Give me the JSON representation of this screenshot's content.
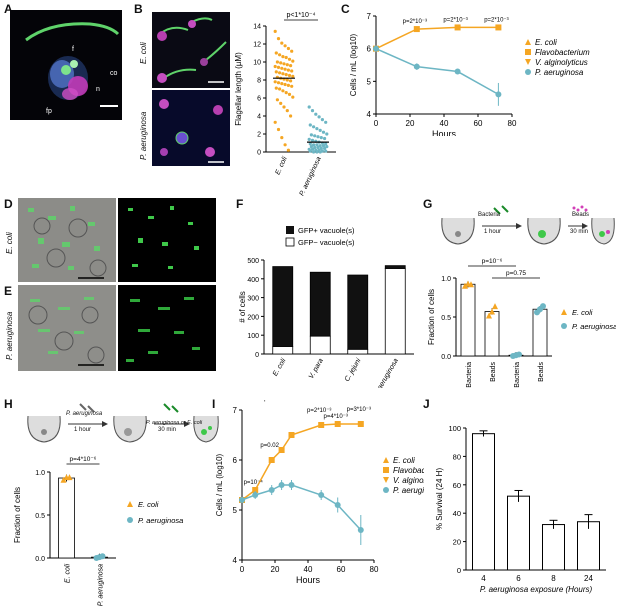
{
  "panel_letters": [
    "A",
    "B",
    "C",
    "D",
    "E",
    "F",
    "G",
    "H",
    "I",
    "J"
  ],
  "panelA": {
    "labels": {
      "f": "f",
      "co": "co",
      "n": "n",
      "fp": "fp"
    }
  },
  "panelB": {
    "row_labels": [
      "E. coli",
      "P. aeruginosa"
    ],
    "pvalue": "p<1*10⁻⁴",
    "ylabel": "Flagellar length (µM)",
    "yticks": [
      "0",
      "2",
      "4",
      "6",
      "8",
      "10",
      "12",
      "14"
    ],
    "xticks": [
      "E. coli",
      "P. aeruginosa"
    ]
  },
  "panelD": {
    "row_label": "E. coli"
  },
  "panelE": {
    "row_label": "P. aeruginosa"
  },
  "panelG": {
    "schematic": {
      "step1": "Bacteria",
      "step1_time": "1 hour",
      "step2": "Beads",
      "step2_time": "30 min"
    }
  },
  "panelH": {
    "schematic": {
      "step1": "P. aeruginosa",
      "step1_time": "1 hour",
      "step2": "P. aeruginosa or E. coli",
      "step2_time": "30 min"
    }
  },
  "colors": {
    "ecoli": "#f5a623",
    "paeruginosa": "#6db6c4",
    "bar_black": "#111111"
  },
  "chart_data": [
    {
      "panel": "B",
      "type": "scatter",
      "ylabel": "Flagellar length (µM)",
      "categories": [
        "E. coli",
        "P. aeruginosa"
      ],
      "ylim": [
        0,
        14
      ],
      "annotation": "p<1*10⁻⁴",
      "series": [
        {
          "name": "E. coli",
          "mean": 8.2,
          "values": [
            13.4,
            12.6,
            12.1,
            11.8,
            11.5,
            11.2,
            11.0,
            10.8,
            10.6,
            10.5,
            10.3,
            10.1,
            10.0,
            9.9,
            9.8,
            9.7,
            9.6,
            9.5,
            9.4,
            9.3,
            9.2,
            9.1,
            9.0,
            8.9,
            8.8,
            8.7,
            8.6,
            8.5,
            8.4,
            8.3,
            8.2,
            8.1,
            8.0,
            7.9,
            7.8,
            7.7,
            7.6,
            7.5,
            7.4,
            7.3,
            7.1,
            7.0,
            6.8,
            6.6,
            6.4,
            6.1,
            5.8,
            5.4,
            5.0,
            4.6,
            4.0,
            3.3,
            2.5,
            1.6,
            0.8,
            0.2
          ]
        },
        {
          "name": "P. aeruginosa",
          "mean": 1.1,
          "values": [
            5.0,
            4.6,
            4.2,
            3.9,
            3.6,
            3.3,
            3.0,
            2.8,
            2.6,
            2.4,
            2.2,
            2.0,
            1.9,
            1.8,
            1.7,
            1.6,
            1.5,
            1.4,
            1.3,
            1.2,
            1.1,
            1.0,
            0.9,
            0.9,
            0.8,
            0.8,
            0.7,
            0.7,
            0.6,
            0.6,
            0.5,
            0.5,
            0.4,
            0.4,
            0.3,
            0.3,
            0.2,
            0.2,
            0.1,
            0.1,
            0.1,
            0.0,
            0.0,
            0.0
          ]
        }
      ]
    },
    {
      "panel": "C",
      "type": "line",
      "xlabel": "Hours",
      "ylabel": "Cells / mL (log10)",
      "xlim": [
        0,
        80
      ],
      "ylim": [
        4,
        7
      ],
      "xticks": [
        0,
        20,
        40,
        60,
        80
      ],
      "yticks": [
        4,
        5,
        6,
        7
      ],
      "pvalues": [
        {
          "x": 24,
          "label": "p=2*10⁻³"
        },
        {
          "x": 48,
          "label": "p=2*10⁻³"
        },
        {
          "x": 72,
          "label": "p=2*10⁻³"
        }
      ],
      "series": [
        {
          "name": "E. coli",
          "x": [],
          "y": []
        },
        {
          "name": "Flavobacterium",
          "x": [
            0,
            24,
            48,
            72
          ],
          "y": [
            6.0,
            6.6,
            6.65,
            6.65
          ],
          "err": [
            0.05,
            0.05,
            0.05,
            0.05
          ]
        },
        {
          "name": "V. alginolyticus",
          "x": [],
          "y": []
        },
        {
          "name": "P. aeruginosa",
          "x": [
            0,
            24,
            48,
            72
          ],
          "y": [
            6.0,
            5.45,
            5.3,
            4.6
          ],
          "err": [
            0.05,
            0.1,
            0.08,
            0.35
          ]
        }
      ]
    },
    {
      "panel": "F",
      "type": "bar",
      "ylabel": "# of cells",
      "categories": [
        "E. coli",
        "V. para",
        "C. jejuni",
        "P. aeruginosa"
      ],
      "ylim": [
        0,
        500
      ],
      "yticks": [
        0,
        100,
        200,
        300,
        400,
        500
      ],
      "legend": [
        "GFP+ vacuole(s)",
        "GFP− vacuole(s)"
      ],
      "series": [
        {
          "name": "GFP− vacuole(s)",
          "values": [
            40,
            95,
            25,
            455
          ]
        },
        {
          "name": "GFP+ vacuole(s)",
          "values": [
            425,
            340,
            395,
            15
          ]
        }
      ]
    },
    {
      "panel": "G",
      "type": "bar",
      "ylabel": "Fraction of cells",
      "categories": [
        "Bacteria",
        "Beads",
        "Bacteria",
        "Beads"
      ],
      "groups": [
        "E. coli",
        "E. coli",
        "P. aeruginosa",
        "P. aeruginosa"
      ],
      "ylim": [
        0,
        1
      ],
      "yticks": [
        "0.0",
        "0.5",
        "1.0"
      ],
      "annotations": [
        "p=10⁻⁶",
        "p=0.75"
      ],
      "values": [
        0.92,
        0.57,
        0.01,
        0.6
      ],
      "points": [
        [
          0.9,
          0.93,
          0.92
        ],
        [
          0.52,
          0.57,
          0.64
        ],
        [
          0.0,
          0.01,
          0.02
        ],
        [
          0.56,
          0.6,
          0.64
        ]
      ]
    },
    {
      "panel": "H",
      "type": "bar",
      "ylabel": "Fraction of cells",
      "categories": [
        "E. coli",
        "P. aeruginosa"
      ],
      "ylim": [
        0,
        1
      ],
      "yticks": [
        "0.0",
        "0.5",
        "1.0"
      ],
      "annotation": "p=4*10⁻⁶",
      "values": [
        0.93,
        0.01
      ],
      "points": [
        [
          0.91,
          0.94,
          0.94
        ],
        [
          0.0,
          0.01,
          0.02
        ]
      ]
    },
    {
      "panel": "I",
      "type": "line",
      "xlabel": "Hours",
      "ylabel": "Cells / mL (log10)",
      "xlim": [
        0,
        80
      ],
      "ylim": [
        4,
        7
      ],
      "xticks": [
        0,
        20,
        40,
        60,
        80
      ],
      "yticks": [
        4,
        5,
        6,
        7
      ],
      "pvalues": [
        {
          "x": 8,
          "label": "p=10⁻⁴"
        },
        {
          "x": 18,
          "label": "p=0.02"
        },
        {
          "x": 22,
          "label": "p=5*10⁻³"
        },
        {
          "x": 48,
          "label": "p=2*10⁻³"
        },
        {
          "x": 58,
          "label": "p=4*10⁻³"
        },
        {
          "x": 72,
          "label": "p=3*10⁻³"
        }
      ],
      "series": [
        {
          "name": "E. coli",
          "x": [],
          "y": []
        },
        {
          "name": "Flavobacterium",
          "x": [
            0,
            8,
            18,
            24,
            30,
            48,
            58,
            72
          ],
          "y": [
            5.2,
            5.4,
            6.0,
            6.2,
            6.5,
            6.7,
            6.72,
            6.72
          ],
          "err": [
            0.05,
            0.05,
            0.05,
            0.05,
            0.05,
            0.05,
            0.05,
            0.05
          ]
        },
        {
          "name": "V. alginolyticus",
          "x": [],
          "y": []
        },
        {
          "name": "P. aeruginosa",
          "x": [
            0,
            8,
            18,
            24,
            30,
            48,
            58,
            72
          ],
          "y": [
            5.2,
            5.3,
            5.4,
            5.5,
            5.5,
            5.3,
            5.1,
            4.6
          ],
          "err": [
            0.05,
            0.08,
            0.1,
            0.1,
            0.1,
            0.1,
            0.15,
            0.3
          ]
        }
      ]
    },
    {
      "panel": "J",
      "type": "bar",
      "xlabel": "P. aeruginosa exposure (Hours)",
      "ylabel": "% Survival (24 H)",
      "categories": [
        "4",
        "6",
        "8",
        "24"
      ],
      "ylim": [
        0,
        100
      ],
      "yticks": [
        0,
        20,
        40,
        60,
        80,
        100
      ],
      "values": [
        96,
        52,
        32,
        34
      ],
      "err": [
        2,
        4,
        3,
        5
      ]
    }
  ]
}
